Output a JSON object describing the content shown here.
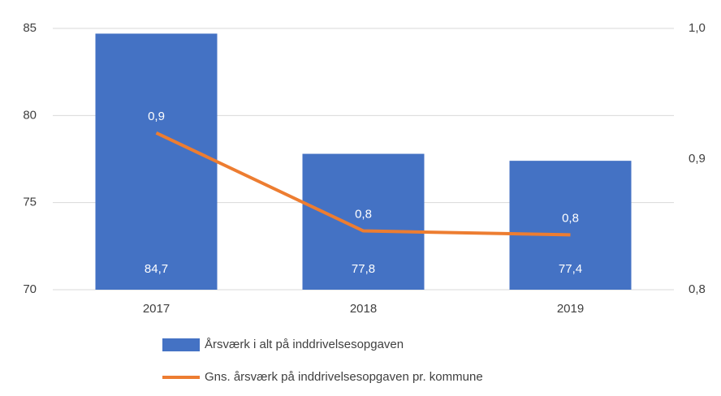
{
  "chart_data": {
    "type": "bar_line",
    "categories": [
      "2017",
      "2018",
      "2019"
    ],
    "series": [
      {
        "name": "Årsværk i alt på inddrivelsesopgaven",
        "type": "bar",
        "color": "#4472c4",
        "values": [
          84.7,
          77.8,
          77.4
        ],
        "value_labels": [
          "84,7",
          "77,8",
          "77,4"
        ]
      },
      {
        "name": "Gns. årsværk på inddrivelsesopgaven pr. kommune",
        "type": "line",
        "axis": "y2",
        "color": "#ed7d31",
        "values": [
          0.92,
          0.845,
          0.842
        ],
        "value_labels": [
          "0,9",
          "0,8",
          "0,8"
        ]
      }
    ],
    "ylim": [
      70,
      85
    ],
    "yticks": [
      70,
      75,
      80,
      85
    ],
    "y2lim": [
      0.8,
      1.0
    ],
    "y2ticks": [
      {
        "value": 0.8,
        "label": "0,8"
      },
      {
        "value": 0.9,
        "label": "0,9"
      },
      {
        "value": 1.0,
        "label": "1,0"
      }
    ],
    "grid": true,
    "legend": "bottom"
  }
}
